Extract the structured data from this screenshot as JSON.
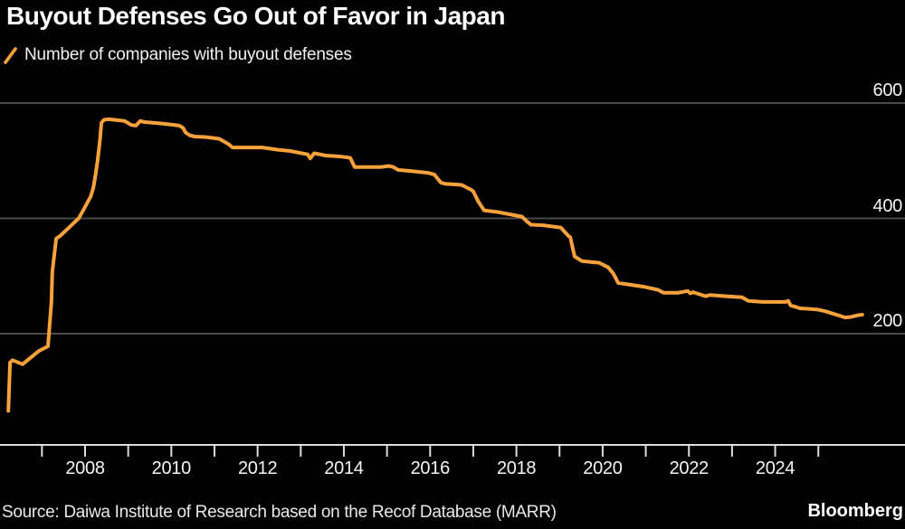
{
  "header": {
    "title": "Buyout Defenses Go Out of Favor in Japan",
    "legend_label": "Number of companies with buyout defenses"
  },
  "footer": {
    "source": "Source: Daiwa Institute of Research based on the Recof Database (MARR)",
    "brand": "Bloomberg"
  },
  "colors": {
    "background": "#000000",
    "series_orange": "#F9A13A",
    "gridline": "#4A4A4A",
    "axis_line": "#DCDCDC",
    "label_text": "#F5F5F5"
  },
  "chart_data": {
    "type": "line",
    "title": "Buyout Defenses Go Out of Favor in Japan",
    "series_name": "Number of companies with buyout defenses",
    "legend_position": "top-left",
    "y_axis_side": "right",
    "grid": "horizontal",
    "y_ticks": [
      600,
      400,
      200
    ],
    "x_tick_years": [
      2007,
      2008,
      2009,
      2010,
      2011,
      2012,
      2013,
      2014,
      2015,
      2016,
      2017,
      2018,
      2019,
      2020,
      2021,
      2022,
      2023,
      2024,
      2025
    ],
    "x_label_years": [
      2008,
      2010,
      2012,
      2014,
      2016,
      2018,
      2020,
      2022,
      2024
    ],
    "x_range_years": [
      2006.0,
      2027.0
    ],
    "y_range_approx": [
      10,
      645
    ],
    "points": [
      [
        2006.22,
        66
      ],
      [
        2006.26,
        150
      ],
      [
        2006.32,
        154
      ],
      [
        2006.55,
        147
      ],
      [
        2006.93,
        170
      ],
      [
        2007.14,
        178
      ],
      [
        2007.22,
        255
      ],
      [
        2007.24,
        307
      ],
      [
        2007.33,
        365
      ],
      [
        2007.43,
        370
      ],
      [
        2007.64,
        385
      ],
      [
        2007.85,
        400
      ],
      [
        2007.98,
        417
      ],
      [
        2008.13,
        438
      ],
      [
        2008.19,
        453
      ],
      [
        2008.23,
        470
      ],
      [
        2008.29,
        500
      ],
      [
        2008.34,
        532
      ],
      [
        2008.38,
        566
      ],
      [
        2008.44,
        571
      ],
      [
        2008.55,
        572
      ],
      [
        2008.92,
        569
      ],
      [
        2009.07,
        562
      ],
      [
        2009.18,
        561
      ],
      [
        2009.28,
        569
      ],
      [
        2009.38,
        567
      ],
      [
        2009.7,
        565
      ],
      [
        2009.97,
        563
      ],
      [
        2010.18,
        561
      ],
      [
        2010.27,
        557
      ],
      [
        2010.33,
        549
      ],
      [
        2010.43,
        544
      ],
      [
        2010.54,
        542
      ],
      [
        2010.81,
        541
      ],
      [
        2011.11,
        538
      ],
      [
        2011.23,
        533
      ],
      [
        2011.34,
        528
      ],
      [
        2011.42,
        523
      ],
      [
        2012.11,
        523
      ],
      [
        2012.47,
        519
      ],
      [
        2012.74,
        517
      ],
      [
        2013.16,
        511
      ],
      [
        2013.22,
        504
      ],
      [
        2013.31,
        513
      ],
      [
        2013.58,
        509
      ],
      [
        2013.96,
        507
      ],
      [
        2014.15,
        505
      ],
      [
        2014.25,
        489
      ],
      [
        2014.84,
        489
      ],
      [
        2015.05,
        491
      ],
      [
        2015.15,
        489
      ],
      [
        2015.26,
        484
      ],
      [
        2015.57,
        482
      ],
      [
        2015.95,
        479
      ],
      [
        2016.1,
        476
      ],
      [
        2016.25,
        462
      ],
      [
        2016.35,
        460
      ],
      [
        2016.73,
        458
      ],
      [
        2016.94,
        450
      ],
      [
        2017.0,
        447
      ],
      [
        2017.11,
        430
      ],
      [
        2017.25,
        414
      ],
      [
        2017.57,
        411
      ],
      [
        2018.13,
        403
      ],
      [
        2018.24,
        395
      ],
      [
        2018.34,
        389
      ],
      [
        2018.62,
        388
      ],
      [
        2019.03,
        384
      ],
      [
        2019.2,
        370
      ],
      [
        2019.25,
        367
      ],
      [
        2019.35,
        334
      ],
      [
        2019.52,
        326
      ],
      [
        2019.92,
        323
      ],
      [
        2020.13,
        315
      ],
      [
        2020.25,
        304
      ],
      [
        2020.36,
        288
      ],
      [
        2020.99,
        281
      ],
      [
        2021.28,
        276
      ],
      [
        2021.41,
        271
      ],
      [
        2021.76,
        271
      ],
      [
        2021.97,
        274
      ],
      [
        2022.03,
        270
      ],
      [
        2022.1,
        272
      ],
      [
        2022.39,
        265
      ],
      [
        2022.48,
        267
      ],
      [
        2022.87,
        265
      ],
      [
        2023.23,
        263
      ],
      [
        2023.38,
        257
      ],
      [
        2023.71,
        255
      ],
      [
        2024.24,
        255
      ],
      [
        2024.3,
        257
      ],
      [
        2024.36,
        249
      ],
      [
        2024.45,
        247
      ],
      [
        2024.57,
        244
      ],
      [
        2024.97,
        242
      ],
      [
        2025.15,
        239
      ],
      [
        2025.33,
        235
      ],
      [
        2025.5,
        231
      ],
      [
        2025.62,
        228
      ],
      [
        2025.75,
        229
      ],
      [
        2025.92,
        232
      ],
      [
        2026.02,
        233
      ]
    ]
  }
}
